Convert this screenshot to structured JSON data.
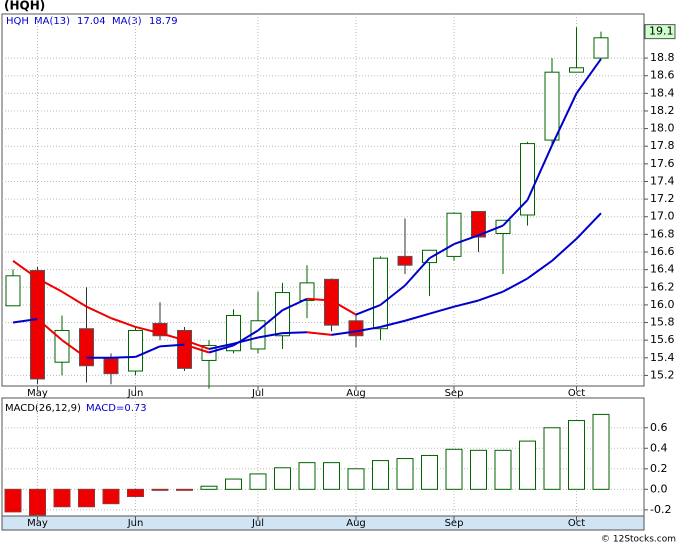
{
  "chart_data": [
    {
      "type": "candlestick",
      "title": "(HQH)",
      "symbol": "HQH",
      "categories": [
        null,
        "May",
        null,
        null,
        null,
        "Jun",
        null,
        null,
        null,
        null,
        "Jul",
        null,
        null,
        null,
        "Aug",
        null,
        null,
        null,
        "Sep",
        null,
        null,
        null,
        null,
        "Oct",
        null
      ],
      "open": [
        15.99,
        16.39,
        15.35,
        15.73,
        15.39,
        15.25,
        15.79,
        15.71,
        15.37,
        15.48,
        15.5,
        15.65,
        16.05,
        16.29,
        15.82,
        15.73,
        16.55,
        16.48,
        16.55,
        17.06,
        16.81,
        17.02,
        17.87,
        18.64,
        18.8
      ],
      "high": [
        16.4,
        16.43,
        15.88,
        16.2,
        15.45,
        15.75,
        16.03,
        15.75,
        15.6,
        15.95,
        16.15,
        16.25,
        16.45,
        16.3,
        15.9,
        16.55,
        16.98,
        16.62,
        17.05,
        17.06,
        16.96,
        17.85,
        18.8,
        19.15,
        19.1
      ],
      "low": [
        15.99,
        15.1,
        15.2,
        15.12,
        15.1,
        15.2,
        15.6,
        15.25,
        15.05,
        15.45,
        15.45,
        15.5,
        15.85,
        15.7,
        15.52,
        15.6,
        16.35,
        16.1,
        16.5,
        16.6,
        16.35,
        16.9,
        17.8,
        18.65,
        18.8
      ],
      "close": [
        16.33,
        15.16,
        15.71,
        15.31,
        15.22,
        15.71,
        15.65,
        15.28,
        15.54,
        15.88,
        15.82,
        16.14,
        16.25,
        15.77,
        15.65,
        16.53,
        16.45,
        16.62,
        17.04,
        16.77,
        16.96,
        17.83,
        18.64,
        18.69,
        19.03
      ],
      "up_color": "#006400",
      "down_color": "#ee0000",
      "rise_color": "#0000cc",
      "fall_color": "#ee0000",
      "last_price": 19.1,
      "series": [
        {
          "name": "MA(13)",
          "last": 17.04,
          "values": [
            16.5,
            16.3,
            16.15,
            15.98,
            15.85,
            15.75,
            15.68,
            15.6,
            15.5,
            15.56,
            15.63,
            15.68,
            15.69,
            15.66,
            15.7,
            15.75,
            15.82,
            15.9,
            15.98,
            16.05,
            16.15,
            16.3,
            16.5,
            16.75,
            17.04
          ]
        },
        {
          "name": "MA(3)",
          "last": 18.79,
          "values": [
            15.8,
            15.84,
            15.6,
            15.4,
            15.4,
            15.41,
            15.53,
            15.55,
            15.46,
            15.54,
            15.71,
            15.94,
            16.07,
            16.05,
            15.89,
            16.0,
            16.22,
            16.53,
            16.69,
            16.79,
            16.9,
            17.19,
            17.81,
            18.4,
            18.79
          ]
        }
      ],
      "ylim": [
        15.08,
        19.3
      ],
      "yticks": [
        15.2,
        15.4,
        15.6,
        15.8,
        {
          "value": 16,
          "label": "16.0"
        },
        16.2,
        16.4,
        16.6,
        16.8,
        {
          "value": 17,
          "label": "17.0"
        },
        17.2,
        17.4,
        17.6,
        17.8,
        {
          "value": 18,
          "label": "18.0"
        },
        18.2,
        18.4,
        18.6,
        18.8
      ],
      "grid": true
    },
    {
      "type": "histogram-bar",
      "title": "MACD(26,12,9)",
      "indicator_label": "MACD=0.73",
      "categories": [
        null,
        "May",
        null,
        null,
        null,
        "Jun",
        null,
        null,
        null,
        null,
        "Jul",
        null,
        null,
        null,
        "Aug",
        null,
        null,
        null,
        "Sep",
        null,
        null,
        null,
        null,
        "Oct",
        null
      ],
      "values": [
        -0.22,
        -0.25,
        -0.17,
        -0.17,
        -0.14,
        -0.07,
        -0.01,
        -0.01,
        0.03,
        0.1,
        0.15,
        0.21,
        0.26,
        0.26,
        0.2,
        0.28,
        0.3,
        0.33,
        0.39,
        0.38,
        0.38,
        0.47,
        0.6,
        0.67,
        0.73
      ],
      "up_color": "#006400",
      "down_color": "#ee0000",
      "ylim": [
        -0.26,
        0.89
      ],
      "yticks": [
        -0.2,
        {
          "value": 0,
          "label": "0.0"
        },
        0.2,
        0.4,
        0.6
      ],
      "grid": true
    }
  ],
  "footer": "© 12Stocks.com"
}
